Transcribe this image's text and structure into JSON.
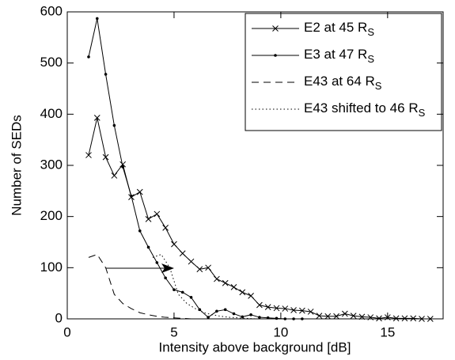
{
  "chart_data": {
    "type": "line",
    "xlabel": "Intensity above background [dB]",
    "ylabel": "Number of SEDs",
    "xlim": [
      0,
      17.6
    ],
    "ylim": [
      0,
      600
    ],
    "xticks": [
      0,
      5,
      10,
      15
    ],
    "yticks": [
      0,
      100,
      200,
      300,
      400,
      500,
      600
    ],
    "legend": "upper right",
    "series": [
      {
        "name": "E2 at 45 RS",
        "color": "#000000",
        "style": "solid",
        "marker": "x",
        "x": [
          1.0,
          1.4,
          1.8,
          2.2,
          2.6,
          3.0,
          3.4,
          3.8,
          4.2,
          4.6,
          5.0,
          5.4,
          5.8,
          6.2,
          6.6,
          7.0,
          7.4,
          7.8,
          8.2,
          8.6,
          9.0,
          9.4,
          9.8,
          10.2,
          10.6,
          11.0,
          11.4,
          11.8,
          12.2,
          12.6,
          13.0,
          13.4,
          13.8,
          14.2,
          14.6,
          15.0,
          15.4,
          15.8,
          16.2,
          16.6,
          17.0
        ],
        "values": [
          320,
          393,
          316,
          280,
          302,
          238,
          248,
          195,
          205,
          178,
          146,
          128,
          112,
          97,
          100,
          78,
          70,
          62,
          52,
          45,
          27,
          23,
          21,
          20,
          17,
          16,
          14,
          6,
          5,
          5,
          10,
          6,
          4,
          3,
          1,
          3,
          1,
          1,
          1,
          0,
          0
        ]
      },
      {
        "name": "E3 at 47 RS",
        "color": "#000000",
        "style": "solid",
        "marker": "dot",
        "x": [
          1.0,
          1.4,
          1.8,
          2.2,
          2.6,
          3.0,
          3.4,
          3.8,
          4.2,
          4.6,
          5.0,
          5.4,
          5.8,
          6.2,
          6.6,
          7.0,
          7.4,
          7.8,
          8.2,
          8.6,
          9.0,
          9.4,
          9.8,
          10.2,
          10.6,
          11.0
        ],
        "values": [
          512,
          587,
          478,
          378,
          297,
          240,
          172,
          140,
          110,
          80,
          57,
          52,
          42,
          18,
          3,
          15,
          18,
          10,
          4,
          8,
          3,
          2,
          1,
          0,
          0,
          0
        ]
      },
      {
        "name": "E43 at 64 RS",
        "color": "#000000",
        "style": "dashed",
        "marker": "none",
        "x": [
          1.0,
          1.4,
          1.8,
          2.2,
          2.6,
          3.0,
          3.4,
          3.8,
          4.2,
          4.6,
          5.0,
          5.4,
          5.8,
          6.2,
          6.6
        ],
        "values": [
          120,
          126,
          100,
          48,
          30,
          20,
          12,
          8,
          5,
          3,
          2,
          1,
          0,
          0,
          0
        ]
      },
      {
        "name": "E43 shifted to 46 RS",
        "color": "#000000",
        "style": "dotted",
        "marker": "none",
        "x": [
          4.0,
          4.4,
          4.8,
          5.2,
          5.6,
          6.0,
          6.4,
          6.8,
          7.2,
          7.6,
          8.0,
          8.4,
          8.8
        ],
        "values": [
          120,
          126,
          100,
          48,
          30,
          20,
          12,
          8,
          5,
          3,
          2,
          1,
          0
        ]
      }
    ]
  }
}
